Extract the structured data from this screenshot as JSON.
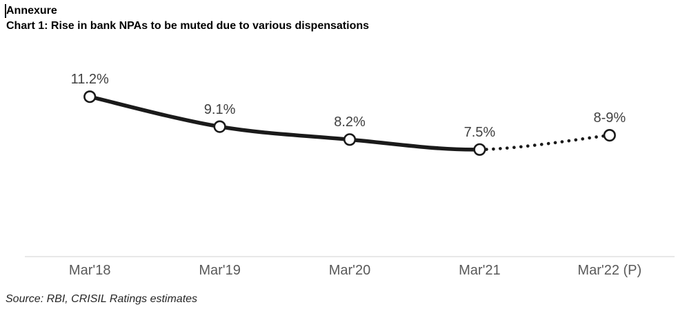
{
  "page": {
    "heading": "Annexure",
    "source": "Source: RBI, CRISIL Ratings estimates"
  },
  "chart_data": {
    "type": "line",
    "title": "Chart 1: Rise in bank NPAs to be muted due to various dispensations",
    "categories": [
      "Mar'18",
      "Mar'19",
      "Mar'20",
      "Mar'21",
      "Mar'22 (P)"
    ],
    "values": [
      11.2,
      9.1,
      8.2,
      7.5,
      8.5
    ],
    "point_labels": [
      "11.2%",
      "9.1%",
      "8.2%",
      "7.5%",
      "8-9%"
    ],
    "unit": "%",
    "projected_from_index": 3,
    "line_segments": {
      "solid": "Mar'18 to Mar'21",
      "dotted": "Mar'21 to Mar'22 (P)"
    },
    "xlabel": "",
    "ylabel": "",
    "ylim": [
      0,
      14
    ],
    "grid": false,
    "legend": false,
    "colors": {
      "line": "#1a1a1a",
      "marker_fill": "#ffffff",
      "marker_stroke": "#1a1a1a",
      "axis_line": "#d9d9d9",
      "data_label": "#404040",
      "axis_label": "#595959"
    }
  }
}
